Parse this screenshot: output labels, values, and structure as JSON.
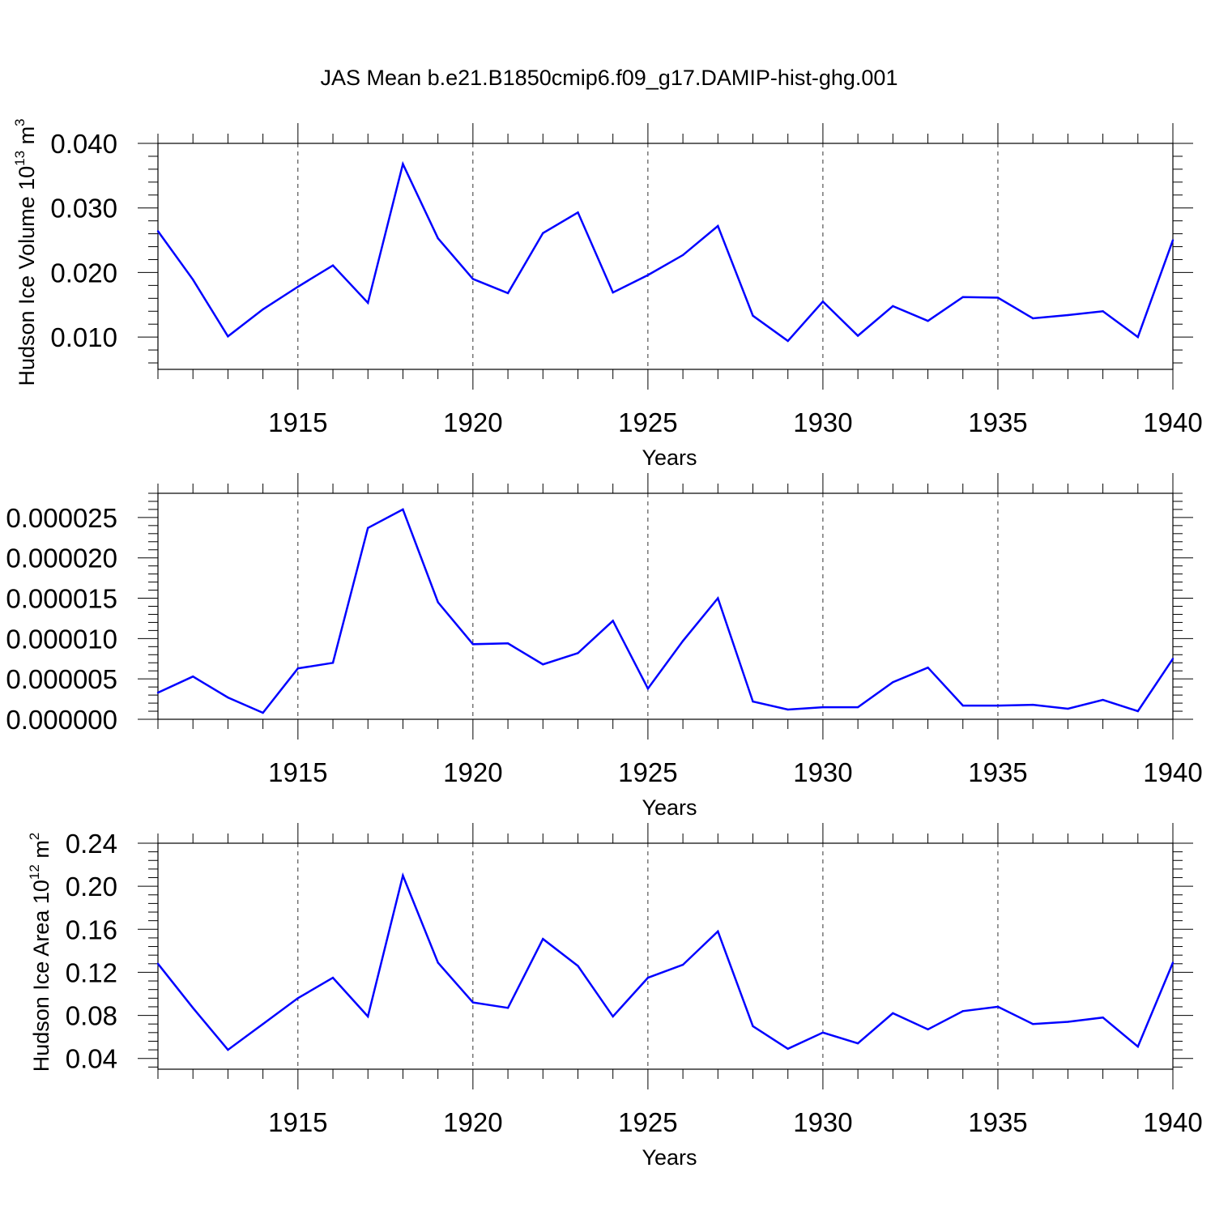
{
  "title": "JAS Mean b.e21.B1850cmip6.f09_g17.DAMIP-hist-ghg.001",
  "colors": {
    "series": "#0000ff",
    "axis": "#000000",
    "gridline": "#000000"
  },
  "chart_data": [
    {
      "type": "line",
      "name": "hudson-ice-volume",
      "ylabel": {
        "prefix": "Hudson Ice Volume 10",
        "exponent": "13",
        "unit": " m",
        "unit_exponent": "3"
      },
      "xlabel": "Years",
      "xlim": [
        1911,
        1940
      ],
      "ylim": [
        0.005,
        0.04
      ],
      "yticks": [
        0.01,
        0.02,
        0.03,
        0.04
      ],
      "ytick_labels": [
        "0.010",
        "0.020",
        "0.030",
        "0.040"
      ],
      "xticks": [
        1915,
        1920,
        1925,
        1930,
        1935,
        1940
      ],
      "xtick_labels": [
        "1915",
        "1920",
        "1925",
        "1930",
        "1935",
        "1940"
      ],
      "grid": "vertical-dashed",
      "x": [
        1911,
        1912,
        1913,
        1914,
        1915,
        1916,
        1917,
        1918,
        1919,
        1920,
        1921,
        1922,
        1923,
        1924,
        1925,
        1926,
        1927,
        1928,
        1929,
        1930,
        1931,
        1932,
        1933,
        1934,
        1935,
        1936,
        1937,
        1938,
        1939,
        1940
      ],
      "values": [
        0.0264,
        0.0189,
        0.0101,
        0.0143,
        0.0178,
        0.0211,
        0.0153,
        0.0368,
        0.0253,
        0.019,
        0.0168,
        0.0261,
        0.0293,
        0.0169,
        0.0196,
        0.0227,
        0.0272,
        0.0133,
        0.0094,
        0.0155,
        0.0102,
        0.0148,
        0.0125,
        0.0162,
        0.0161,
        0.0129,
        0.0134,
        0.014,
        0.01,
        0.025
      ]
    },
    {
      "type": "line",
      "name": "second-panel",
      "ylabel": null,
      "xlabel": "Years",
      "xlim": [
        1911,
        1940
      ],
      "ylim": [
        0.0,
        2.8e-05
      ],
      "yticks": [
        0.0,
        5e-06,
        1e-05,
        1.5e-05,
        2e-05,
        2.5e-05
      ],
      "ytick_labels": [
        "0.000000",
        "0.000005",
        "0.000010",
        "0.000015",
        "0.000020",
        "0.000025"
      ],
      "xticks": [
        1915,
        1920,
        1925,
        1930,
        1935,
        1940
      ],
      "xtick_labels": [
        "1915",
        "1920",
        "1925",
        "1930",
        "1935",
        "1940"
      ],
      "grid": "vertical-dashed",
      "x": [
        1911,
        1912,
        1913,
        1914,
        1915,
        1916,
        1917,
        1918,
        1919,
        1920,
        1921,
        1922,
        1923,
        1924,
        1925,
        1926,
        1927,
        1928,
        1929,
        1930,
        1931,
        1932,
        1933,
        1934,
        1935,
        1936,
        1937,
        1938,
        1939,
        1940
      ],
      "values": [
        3.3e-06,
        5.3e-06,
        2.7e-06,
        8e-07,
        6.3e-06,
        7e-06,
        2.37e-05,
        2.6e-05,
        1.45e-05,
        9.3e-06,
        9.4e-06,
        6.8e-06,
        8.2e-06,
        1.22e-05,
        3.8e-06,
        9.7e-06,
        1.5e-05,
        2.2e-06,
        1.2e-06,
        1.5e-06,
        1.5e-06,
        4.6e-06,
        6.4e-06,
        1.7e-06,
        1.7e-06,
        1.8e-06,
        1.3e-06,
        2.4e-06,
        1e-06,
        7.5e-06
      ]
    },
    {
      "type": "line",
      "name": "hudson-ice-area",
      "ylabel": {
        "prefix": "Hudson Ice Area 10",
        "exponent": "12",
        "unit": " m",
        "unit_exponent": "2"
      },
      "xlabel": "Years",
      "xlim": [
        1911,
        1940
      ],
      "ylim": [
        0.03,
        0.24
      ],
      "yticks": [
        0.04,
        0.08,
        0.12,
        0.16,
        0.2,
        0.24
      ],
      "ytick_labels": [
        "0.04",
        "0.08",
        "0.12",
        "0.16",
        "0.20",
        "0.24"
      ],
      "xticks": [
        1915,
        1920,
        1925,
        1930,
        1935,
        1940
      ],
      "xtick_labels": [
        "1915",
        "1920",
        "1925",
        "1930",
        "1935",
        "1940"
      ],
      "grid": "vertical-dashed",
      "x": [
        1911,
        1912,
        1913,
        1914,
        1915,
        1916,
        1917,
        1918,
        1919,
        1920,
        1921,
        1922,
        1923,
        1924,
        1925,
        1926,
        1927,
        1928,
        1929,
        1930,
        1931,
        1932,
        1933,
        1934,
        1935,
        1936,
        1937,
        1938,
        1939,
        1940
      ],
      "values": [
        0.128,
        0.087,
        0.048,
        0.072,
        0.096,
        0.115,
        0.079,
        0.21,
        0.129,
        0.092,
        0.087,
        0.151,
        0.126,
        0.079,
        0.115,
        0.127,
        0.158,
        0.07,
        0.049,
        0.064,
        0.054,
        0.082,
        0.067,
        0.084,
        0.088,
        0.072,
        0.074,
        0.078,
        0.051,
        0.129
      ]
    }
  ]
}
